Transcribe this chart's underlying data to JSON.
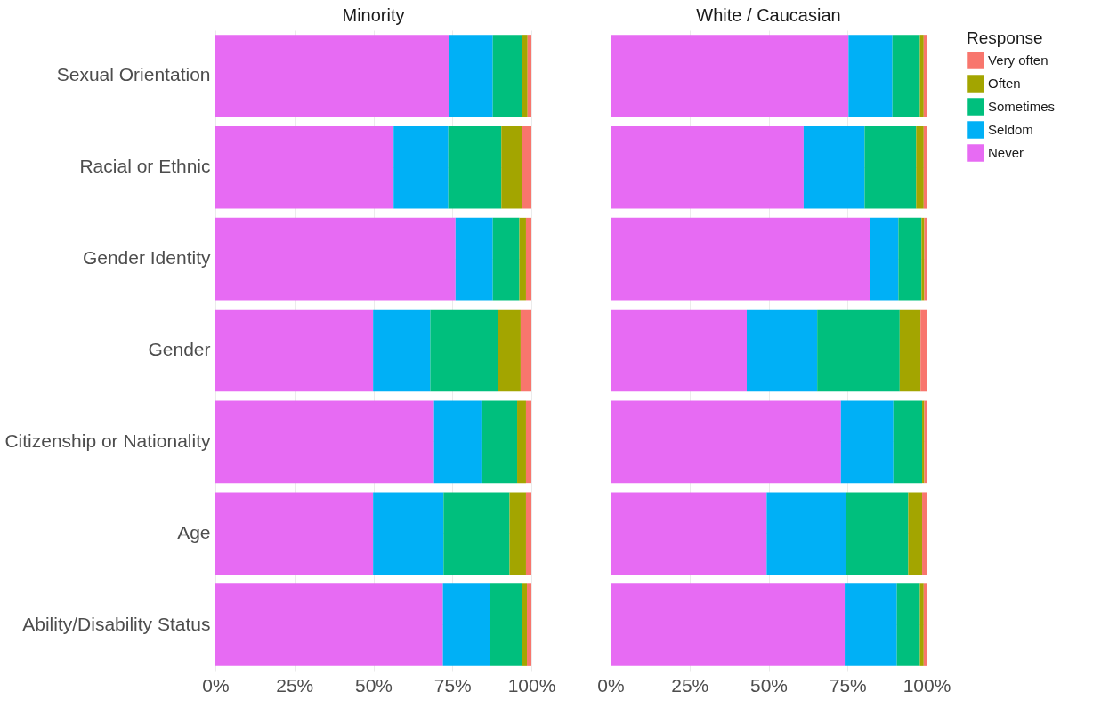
{
  "chart_data": [
    {
      "type": "bar",
      "orientation": "horizontal",
      "stacked": true,
      "title": "Minority",
      "categories": [
        "Sexual Orientation",
        "Racial or Ethnic",
        "Gender Identity",
        "Gender",
        "Citizenship or Nationality",
        "Age",
        "Ability/Disability Status"
      ],
      "series": [
        {
          "name": "Never",
          "color": "#e76bf3",
          "values": [
            73.8,
            56.4,
            76.0,
            49.9,
            69.2,
            49.9,
            72.0
          ]
        },
        {
          "name": "Seldom",
          "color": "#00b0f6",
          "values": [
            14.0,
            17.3,
            11.8,
            18.1,
            15.0,
            22.3,
            15.0
          ]
        },
        {
          "name": "Sometimes",
          "color": "#00bf7d",
          "values": [
            9.3,
            16.8,
            8.4,
            21.4,
            11.3,
            20.9,
            10.1
          ]
        },
        {
          "name": "Often",
          "color": "#a3a500",
          "values": [
            1.7,
            6.4,
            2.1,
            7.2,
            2.8,
            5.2,
            1.5
          ]
        },
        {
          "name": "Very often",
          "color": "#f8766d",
          "values": [
            1.2,
            3.1,
            1.7,
            3.4,
            1.7,
            1.7,
            1.4
          ]
        }
      ],
      "xlim": [
        0,
        100
      ],
      "xticks": [
        {
          "value": 0,
          "label": "0%"
        },
        {
          "value": 25,
          "label": "25%"
        },
        {
          "value": 50,
          "label": "50%"
        },
        {
          "value": 75,
          "label": "75%"
        },
        {
          "value": 100,
          "label": "100%"
        }
      ],
      "grid": true,
      "legend": "right",
      "tick_labels": "xy"
    },
    {
      "type": "bar",
      "orientation": "horizontal",
      "stacked": true,
      "title": "White / Caucasian",
      "categories": [
        "Sexual Orientation",
        "Racial or Ethnic",
        "Gender Identity",
        "Gender",
        "Citizenship or Nationality",
        "Age",
        "Ability/Disability Status"
      ],
      "series": [
        {
          "name": "Never",
          "color": "#e76bf3",
          "values": [
            75.3,
            61.1,
            82.0,
            43.1,
            72.9,
            49.4,
            74.1
          ]
        },
        {
          "name": "Seldom",
          "color": "#00b0f6",
          "values": [
            13.9,
            19.3,
            9.1,
            22.3,
            16.6,
            25.2,
            16.5
          ]
        },
        {
          "name": "Sometimes",
          "color": "#00bf7d",
          "values": [
            8.7,
            16.3,
            7.3,
            26.1,
            9.1,
            19.6,
            7.3
          ]
        },
        {
          "name": "Often",
          "color": "#a3a500",
          "values": [
            1.2,
            2.4,
            0.9,
            6.6,
            0.7,
            4.4,
            1.2
          ]
        },
        {
          "name": "Very often",
          "color": "#f8766d",
          "values": [
            0.9,
            0.9,
            0.7,
            1.9,
            0.7,
            1.4,
            0.9
          ]
        }
      ],
      "xlim": [
        0,
        100
      ],
      "xticks": [
        {
          "value": 0,
          "label": "0%"
        },
        {
          "value": 25,
          "label": "25%"
        },
        {
          "value": 50,
          "label": "50%"
        },
        {
          "value": 75,
          "label": "75%"
        },
        {
          "value": 100,
          "label": "100%"
        }
      ],
      "grid": true,
      "legend": "right",
      "legend_title": "Response",
      "tick_labels": "x"
    }
  ]
}
